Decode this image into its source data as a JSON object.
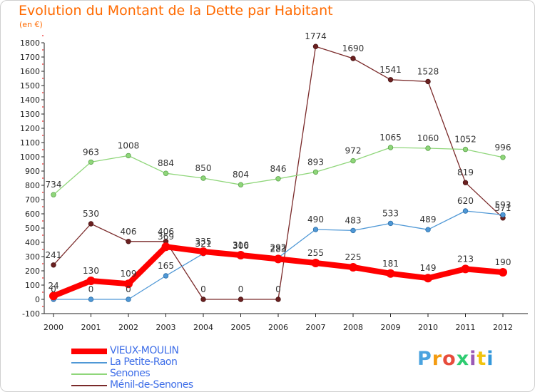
{
  "chart_data": {
    "type": "line",
    "title": "Evolution du Montant de la Dette par Habitant",
    "unit_label": "(en €)",
    "x": [
      "2000",
      "2001",
      "2002",
      "2003",
      "2004",
      "2005",
      "2006",
      "2007",
      "2008",
      "2009",
      "2010",
      "2011",
      "2012"
    ],
    "y_ticks": [
      -100,
      0,
      100,
      200,
      300,
      400,
      500,
      600,
      700,
      800,
      900,
      1000,
      1100,
      1200,
      1300,
      1400,
      1500,
      1600,
      1700,
      1800
    ],
    "ylim": [
      -100,
      1800
    ],
    "grid": false,
    "legend_position": "bottom-left",
    "series": [
      {
        "name": "VIEUX-MOULIN",
        "color": "#ff0000",
        "values": [
          24,
          130,
          109,
          369,
          335,
          310,
          283,
          255,
          225,
          181,
          149,
          213,
          190
        ],
        "labels": [
          "24",
          "130",
          "109",
          "369",
          "335",
          "310",
          "283",
          "255",
          "225",
          "181",
          "149",
          "213",
          "190"
        ]
      },
      {
        "name": "La Petite-Raon",
        "color": "#4f98d6",
        "values": [
          0,
          0,
          0,
          165,
          321,
          306,
          292,
          490,
          483,
          533,
          489,
          620,
          593
        ],
        "labels": [
          "0",
          "0",
          "0",
          "165",
          "321",
          "306",
          "292",
          "490",
          "483",
          "533",
          "489",
          "620",
          "593"
        ]
      },
      {
        "name": "Senones",
        "color": "#8fd67a",
        "values": [
          734,
          963,
          1008,
          884,
          850,
          804,
          846,
          893,
          972,
          1065,
          1060,
          1052,
          996
        ],
        "labels": [
          "734",
          "963",
          "1008",
          "884",
          "850",
          "804",
          "846",
          "893",
          "972",
          "1065",
          "1060",
          "1052",
          "996"
        ]
      },
      {
        "name": "Ménil-de-Senones",
        "color": "#7a2a2a",
        "values": [
          241,
          530,
          406,
          406,
          0,
          0,
          0,
          1774,
          1690,
          1541,
          1528,
          819,
          571
        ],
        "labels": [
          "241",
          "530",
          "406",
          "406",
          "0",
          "0",
          "0",
          "1774",
          "1690",
          "1541",
          "1528",
          "819",
          "571"
        ]
      }
    ]
  },
  "logo": {
    "letters": [
      "P",
      "r",
      "o",
      "x",
      "i",
      "t",
      "i"
    ],
    "colors": [
      "#4aa3df",
      "#f39c12",
      "#e74c3c",
      "#2ecc71",
      "#9b59b6",
      "#f1c40f",
      "#3498db"
    ]
  }
}
